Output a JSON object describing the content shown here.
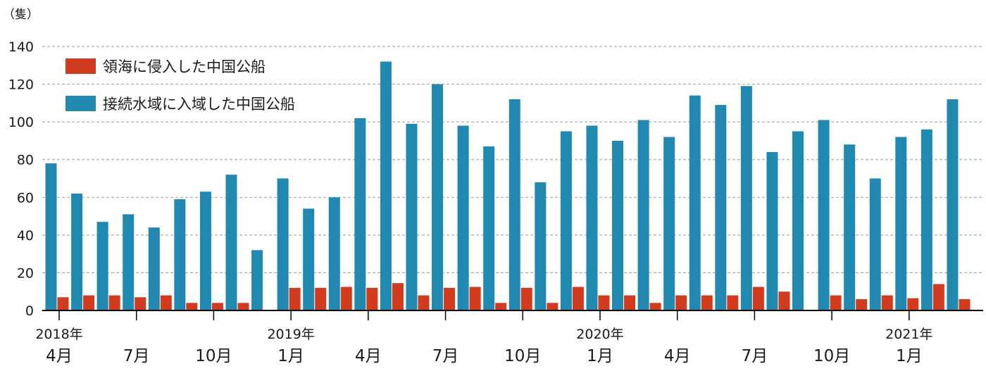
{
  "chart_data": {
    "type": "bar",
    "unit": "（隻）",
    "ylim": [
      0,
      140
    ],
    "yticks": [
      0,
      20,
      40,
      60,
      80,
      100,
      120,
      140
    ],
    "grid": true,
    "legend_placement": "top-left",
    "colors": {
      "intrusion": "#d13c1e",
      "contiguous": "#2189b0"
    },
    "categories": [
      "2018-04",
      "2018-05",
      "2018-06",
      "2018-07",
      "2018-08",
      "2018-09",
      "2018-10",
      "2018-11",
      "2018-12",
      "2019-01",
      "2019-02",
      "2019-03",
      "2019-04",
      "2019-05",
      "2019-06",
      "2019-07",
      "2019-08",
      "2019-09",
      "2019-10",
      "2019-11",
      "2019-12",
      "2020-01",
      "2020-02",
      "2020-03",
      "2020-04",
      "2020-05",
      "2020-06",
      "2020-07",
      "2020-08",
      "2020-09",
      "2020-10",
      "2020-11",
      "2020-12",
      "2021-01",
      "2021-02",
      "2021-03"
    ],
    "series": [
      {
        "name": "接続水域に入域した中国公船",
        "key": "contiguous",
        "values": [
          78,
          62,
          47,
          51,
          44,
          59,
          63,
          72,
          32,
          70,
          54,
          60,
          102,
          132,
          99,
          120,
          98,
          87,
          112,
          68,
          95,
          98,
          90,
          101,
          92,
          114,
          109,
          119,
          84,
          95,
          101,
          88,
          70,
          92,
          96,
          112
        ]
      },
      {
        "name": "領海に侵入した中国公船",
        "key": "intrusion",
        "values": [
          7,
          8,
          8,
          7,
          8,
          4,
          4,
          4,
          0,
          12,
          12,
          12.5,
          12,
          14.5,
          8,
          12,
          12.5,
          4,
          12,
          4,
          12.5,
          8,
          8,
          4,
          8,
          8,
          8,
          12.5,
          10,
          0,
          8,
          6,
          8,
          6.5,
          14,
          6
        ]
      }
    ],
    "x_ticks": [
      {
        "index": 0,
        "month": "4月",
        "year": "2018年"
      },
      {
        "index": 3,
        "month": "7月",
        "year": ""
      },
      {
        "index": 6,
        "month": "10月",
        "year": ""
      },
      {
        "index": 9,
        "month": "1月",
        "year": "2019年"
      },
      {
        "index": 12,
        "month": "4月",
        "year": ""
      },
      {
        "index": 15,
        "month": "7月",
        "year": ""
      },
      {
        "index": 18,
        "month": "10月",
        "year": ""
      },
      {
        "index": 21,
        "month": "1月",
        "year": "2020年"
      },
      {
        "index": 24,
        "month": "4月",
        "year": ""
      },
      {
        "index": 27,
        "month": "7月",
        "year": ""
      },
      {
        "index": 30,
        "month": "10月",
        "year": ""
      },
      {
        "index": 33,
        "month": "1月",
        "year": "2021年"
      }
    ]
  }
}
